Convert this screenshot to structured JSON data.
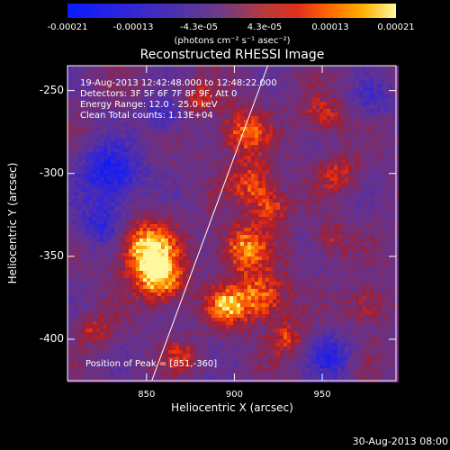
{
  "colorbar": {
    "ticks": [
      "-0.00021",
      "-0.00013",
      "-4.3e-05",
      "4.3e-05",
      "0.00013",
      "0.00021"
    ],
    "units": "(photons cm⁻² s⁻¹ asec⁻²)"
  },
  "chart_data": {
    "type": "heatmap",
    "title": "Reconstructed RHESSI Image",
    "xlabel": "Heliocentric X (arcsec)",
    "ylabel": "Heliocentric Y (arcsec)",
    "xlim": [
      805,
      992
    ],
    "ylim": [
      -425,
      -235
    ],
    "xticks": [
      850,
      900,
      950
    ],
    "yticks": [
      -250,
      -300,
      -350,
      -400
    ],
    "color_range": [
      -0.00021,
      0.00021
    ],
    "annotations": [
      "19-Aug-2013 12:42:48.000 to 12:48:22.000",
      "Detectors: 3F 5F 6F 7F 8F 9F, Att 0",
      "Energy Range: 12.0 - 25.0 keV",
      "Clean     Total counts: 1.13E+04"
    ],
    "peak_label": "Position of Peak = [851,-360]",
    "peak": [
      851,
      -360
    ],
    "limb_line": [
      [
        853,
        -425
      ],
      [
        919,
        -235
      ]
    ],
    "bright_features": [
      {
        "x": 850,
        "y": -345,
        "r": 12,
        "level": 1.0
      },
      {
        "x": 858,
        "y": -365,
        "r": 10,
        "level": 0.85
      },
      {
        "x": 905,
        "y": -345,
        "r": 10,
        "level": 0.8
      },
      {
        "x": 915,
        "y": -375,
        "r": 11,
        "level": 0.8
      },
      {
        "x": 895,
        "y": -380,
        "r": 8,
        "level": 0.7
      },
      {
        "x": 905,
        "y": -275,
        "r": 10,
        "level": 0.7
      },
      {
        "x": 910,
        "y": -305,
        "r": 9,
        "level": 0.65
      },
      {
        "x": 920,
        "y": -320,
        "r": 8,
        "level": 0.6
      },
      {
        "x": 880,
        "y": -255,
        "r": 7,
        "level": 0.45
      },
      {
        "x": 950,
        "y": -265,
        "r": 8,
        "level": 0.55
      },
      {
        "x": 960,
        "y": -300,
        "r": 8,
        "level": 0.5
      },
      {
        "x": 955,
        "y": -340,
        "r": 7,
        "level": 0.45
      },
      {
        "x": 975,
        "y": -380,
        "r": 8,
        "level": 0.5
      },
      {
        "x": 930,
        "y": -400,
        "r": 7,
        "level": 0.55
      },
      {
        "x": 820,
        "y": -395,
        "r": 7,
        "level": 0.45
      },
      {
        "x": 870,
        "y": -410,
        "r": 7,
        "level": 0.45
      }
    ],
    "dark_features": [
      {
        "x": 830,
        "y": -300,
        "r": 12,
        "level": -0.9
      },
      {
        "x": 825,
        "y": -330,
        "r": 10,
        "level": -0.6
      },
      {
        "x": 860,
        "y": -265,
        "r": 8,
        "level": -0.5
      },
      {
        "x": 955,
        "y": -410,
        "r": 9,
        "level": -0.6
      },
      {
        "x": 980,
        "y": -255,
        "r": 8,
        "level": -0.4
      }
    ]
  },
  "timestamp": "30-Aug-2013 08:00"
}
